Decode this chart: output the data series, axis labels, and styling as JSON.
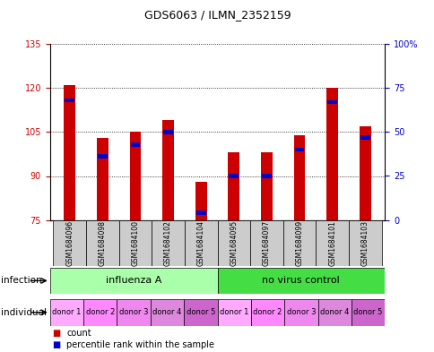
{
  "title": "GDS6063 / ILMN_2352159",
  "samples": [
    "GSM1684096",
    "GSM1684098",
    "GSM1684100",
    "GSM1684102",
    "GSM1684104",
    "GSM1684095",
    "GSM1684097",
    "GSM1684099",
    "GSM1684101",
    "GSM1684103"
  ],
  "counts": [
    121,
    103,
    105,
    109,
    88,
    98,
    98,
    104,
    120,
    107
  ],
  "percentiles": [
    68,
    36,
    43,
    50,
    4,
    25,
    25,
    40,
    67,
    47
  ],
  "ylim_left": [
    75,
    135
  ],
  "ylim_right": [
    0,
    100
  ],
  "yticks_left": [
    75,
    90,
    105,
    120,
    135
  ],
  "yticks_right": [
    0,
    25,
    50,
    75,
    100
  ],
  "yticklabels_right": [
    "0",
    "25",
    "50",
    "75",
    "100%"
  ],
  "bar_color": "#cc0000",
  "percentile_color": "#0000cc",
  "bar_width": 0.35,
  "infection_groups": [
    {
      "label": "influenza A",
      "start": 0,
      "end": 5,
      "color": "#aaffaa"
    },
    {
      "label": "no virus control",
      "start": 5,
      "end": 10,
      "color": "#44dd44"
    }
  ],
  "individual_labels": [
    "donor 1",
    "donor 2",
    "donor 3",
    "donor 4",
    "donor 5",
    "donor 1",
    "donor 2",
    "donor 3",
    "donor 4",
    "donor 5"
  ],
  "ind_colors": [
    "#ffaaff",
    "#ff88ff",
    "#ee88ee",
    "#dd88dd",
    "#cc66cc",
    "#ffaaff",
    "#ff88ff",
    "#ee88ee",
    "#dd88dd",
    "#cc66cc"
  ],
  "grid_color": "#000000",
  "left_tick_color": "#cc0000",
  "right_tick_color": "#0000cc",
  "legend_count_color": "#cc0000",
  "legend_percentile_color": "#0000cc",
  "sample_box_color": "#cccccc",
  "title_fontsize": 9,
  "tick_fontsize": 7,
  "label_fontsize": 7.5,
  "infection_fontsize": 8,
  "individual_fontsize": 6
}
